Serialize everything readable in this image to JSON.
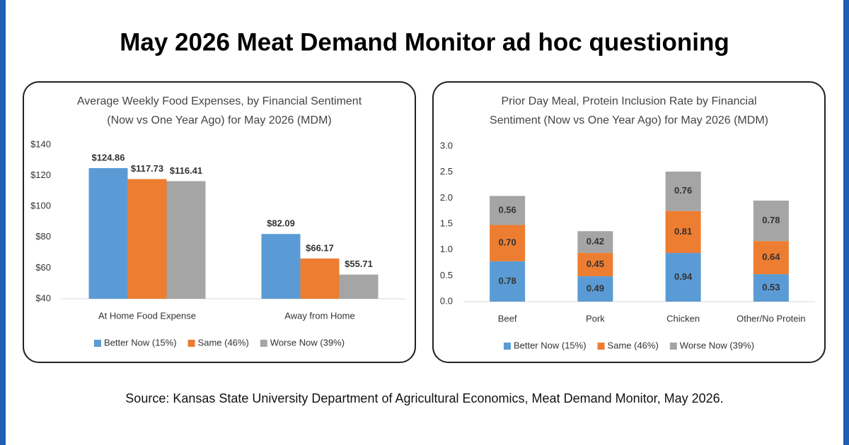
{
  "title": "May 2026 Meat Demand Monitor ad hoc questioning",
  "source": "Source: Kansas State University Department of Agricultural Economics, Meat Demand Monitor, May 2026.",
  "chart_data": [
    {
      "type": "bar",
      "title": [
        "Average Weekly Food Expenses, by Financial Sentiment",
        "(Now vs One Year Ago) for May 2026 (MDM)"
      ],
      "categories": [
        "At Home Food Expense",
        "Away from Home"
      ],
      "series": [
        {
          "name": "Better Now (15%)",
          "color": "#5b9bd5",
          "values": [
            124.86,
            82.09
          ],
          "value_labels": [
            "$124.86",
            "$82.09"
          ]
        },
        {
          "name": "Same (46%)",
          "color": "#ed7d31",
          "values": [
            117.73,
            66.17
          ],
          "value_labels": [
            "$117.73",
            "$66.17"
          ]
        },
        {
          "name": "Worse Now (39%)",
          "color": "#a5a5a5",
          "values": [
            116.41,
            55.71
          ],
          "value_labels": [
            "$116.41",
            "$55.71"
          ]
        }
      ],
      "ylim": [
        40,
        140
      ],
      "yticks": [
        {
          "value": 40,
          "label": "$40"
        },
        {
          "value": 60,
          "label": "$60"
        },
        {
          "value": 80,
          "label": "$80"
        },
        {
          "value": 100,
          "label": "$100"
        },
        {
          "value": 120,
          "label": "$120"
        },
        {
          "value": 140,
          "label": "$140"
        }
      ],
      "legend": "bottom"
    },
    {
      "type": "stacked_bar",
      "title": [
        "Prior Day Meal, Protein Inclusion Rate by Financial",
        "Sentiment (Now vs One Year Ago) for May 2026 (MDM)"
      ],
      "categories": [
        "Beef",
        "Pork",
        "Chicken",
        "Other/No Protein"
      ],
      "series": [
        {
          "name": "Better Now (15%)",
          "color": "#5b9bd5",
          "values": [
            0.78,
            0.49,
            0.94,
            0.53
          ],
          "value_labels": [
            "0.78",
            "0.49",
            "0.94",
            "0.53"
          ]
        },
        {
          "name": "Same (46%)",
          "color": "#ed7d31",
          "values": [
            0.7,
            0.45,
            0.81,
            0.64
          ],
          "value_labels": [
            "0.70",
            "0.45",
            "0.81",
            "0.64"
          ]
        },
        {
          "name": "Worse Now (39%)",
          "color": "#a5a5a5",
          "values": [
            0.56,
            0.42,
            0.76,
            0.78
          ],
          "value_labels": [
            "0.56",
            "0.42",
            "0.76",
            "0.78"
          ]
        }
      ],
      "ylim": [
        0,
        3
      ],
      "yticks": [
        {
          "value": 0,
          "label": "0.0"
        },
        {
          "value": 0.5,
          "label": "0.5"
        },
        {
          "value": 1,
          "label": "1.0"
        },
        {
          "value": 1.5,
          "label": "1.5"
        },
        {
          "value": 2,
          "label": "2.0"
        },
        {
          "value": 2.5,
          "label": "2.5"
        },
        {
          "value": 3,
          "label": "3.0"
        }
      ],
      "legend": "bottom"
    }
  ]
}
